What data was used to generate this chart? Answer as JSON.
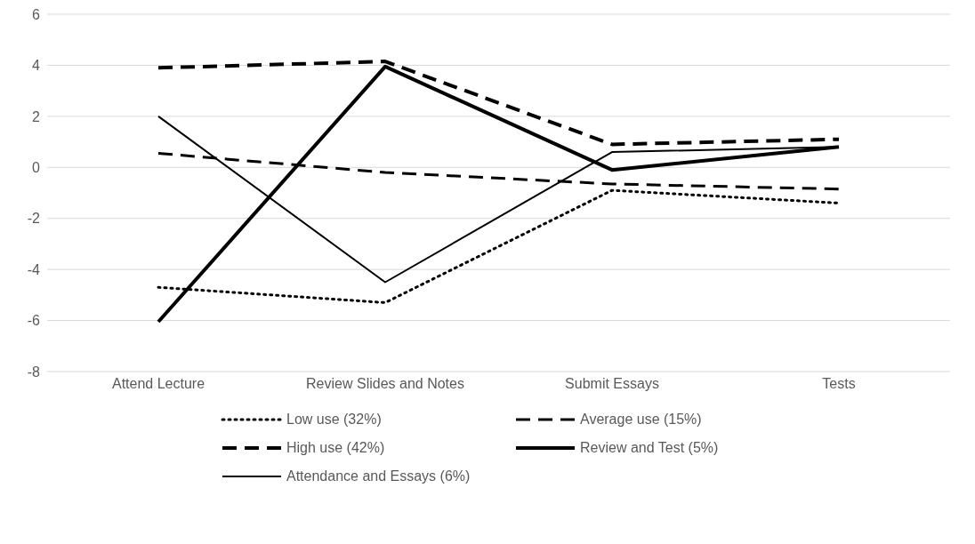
{
  "chart_data": {
    "type": "line",
    "categories": [
      "Attend Lecture",
      "Review Slides and Notes",
      "Submit Essays",
      "Tests"
    ],
    "series": [
      {
        "name": "Low use (32%)",
        "color": "#000000",
        "line_style": "dotted",
        "values": [
          -4.7,
          -5.3,
          -0.9,
          -1.4
        ]
      },
      {
        "name": "Average use (15%)",
        "color": "#000000",
        "line_style": "dashed",
        "values": [
          0.55,
          -0.2,
          -0.65,
          -0.85
        ]
      },
      {
        "name": "High use (42%)",
        "color": "#000000",
        "line_style": "dashed",
        "values": [
          3.9,
          4.15,
          0.9,
          1.1
        ]
      },
      {
        "name": "Review and Test (5%)",
        "color": "#000000",
        "line_style": "solid",
        "values": [
          -6.05,
          3.95,
          -0.1,
          0.8
        ]
      },
      {
        "name": "Attendance and Essays (6%)",
        "color": "#000000",
        "line_style": "solid",
        "values": [
          2.0,
          -4.5,
          0.6,
          0.8
        ]
      }
    ],
    "ylim": [
      -8,
      6
    ],
    "yticks": [
      -8,
      -6,
      -4,
      -2,
      0,
      2,
      4,
      6
    ],
    "grid": "y",
    "legend": "bottom",
    "marker": "none"
  }
}
